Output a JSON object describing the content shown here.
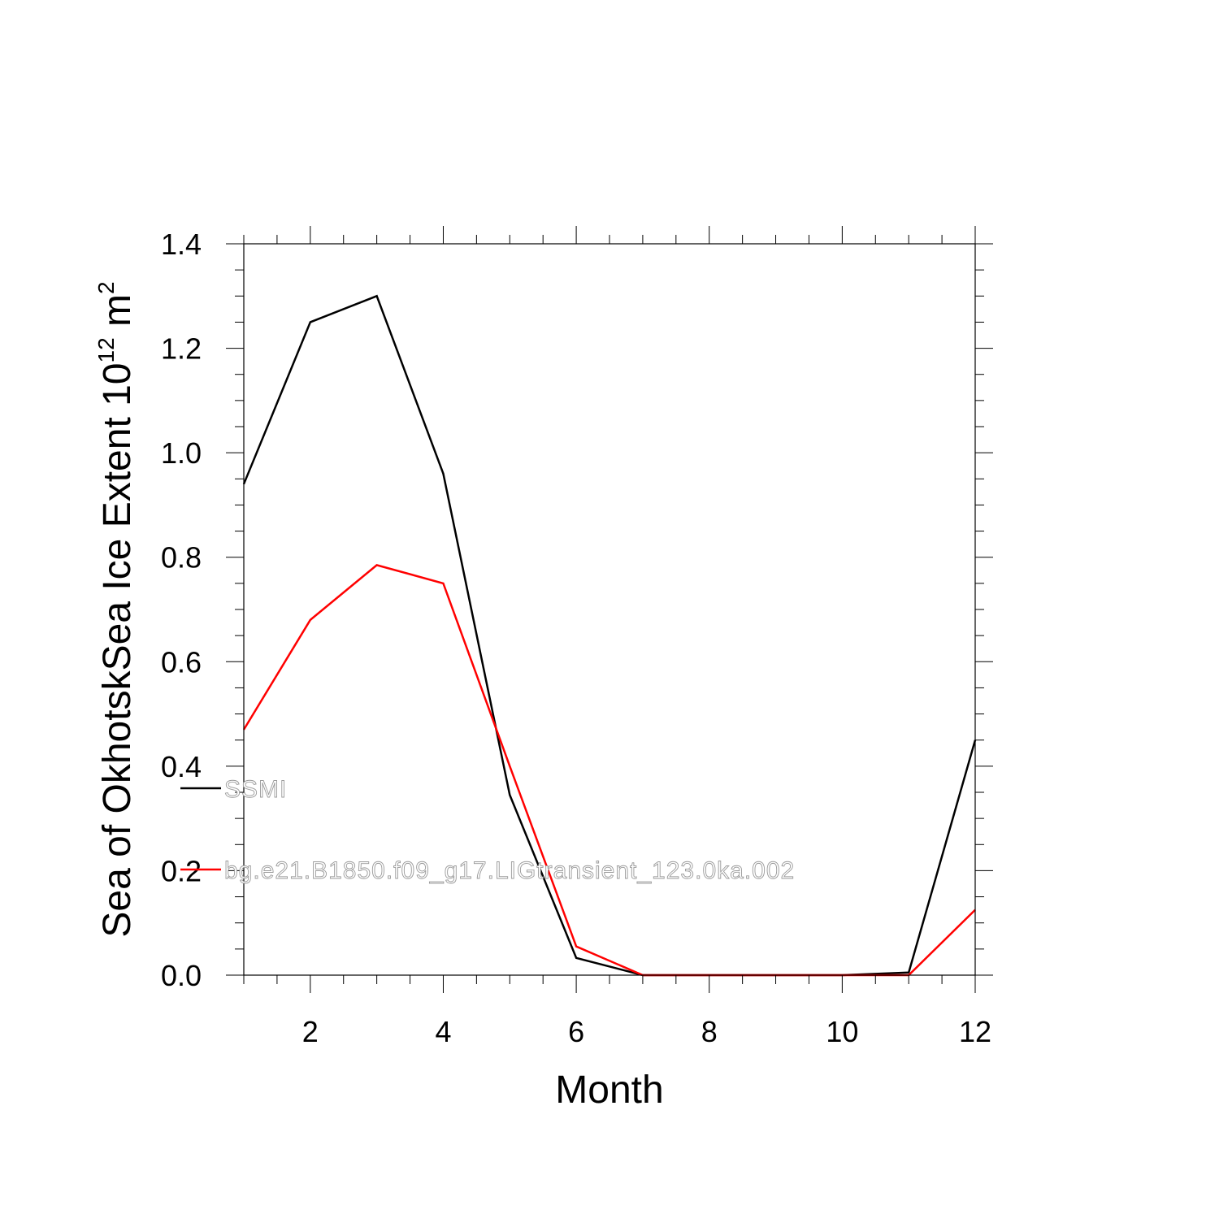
{
  "chart_data": {
    "type": "line",
    "title": "",
    "xlabel": "Month",
    "ylabel_main": "Sea of OkhotskSea Ice Extent 10",
    "ylabel_sup": "12",
    "ylabel_unit": " m",
    "ylabel_unit_sup": "2",
    "xlim": [
      1,
      12
    ],
    "ylim": [
      0,
      1.4
    ],
    "x_ticks": [
      2,
      4,
      6,
      8,
      10,
      12
    ],
    "x_tick_labels": [
      "2",
      "4",
      "6",
      "8",
      "10",
      "12"
    ],
    "y_ticks": [
      0,
      0.2,
      0.4,
      0.6,
      0.8,
      1.0,
      1.2,
      1.4
    ],
    "y_tick_labels": [
      "0.0",
      "0.2",
      "0.4",
      "0.6",
      "0.8",
      "1.0",
      "1.2",
      "1.4"
    ],
    "grid": false,
    "legend_position": "inside-left",
    "x": [
      1,
      2,
      3,
      4,
      5,
      6,
      7,
      8,
      9,
      10,
      11,
      12
    ],
    "series": [
      {
        "name": "SSMI",
        "color": "#000000",
        "values": [
          0.94,
          1.25,
          1.3,
          0.96,
          0.345,
          0.033,
          0.0,
          0.0,
          0.0,
          0.0,
          0.005,
          0.45
        ]
      },
      {
        "name": "bg.e21.B1850.f09_g17.LIGtransient_123.0ka.002",
        "color": "#ff0000",
        "values": [
          0.47,
          0.68,
          0.785,
          0.75,
          0.4,
          0.055,
          0.0,
          0.0,
          0.0,
          0.0,
          0.0,
          0.125
        ]
      }
    ]
  }
}
